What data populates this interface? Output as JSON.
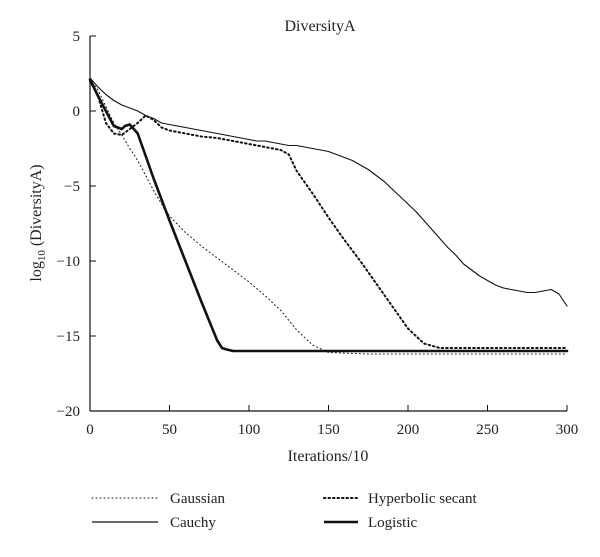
{
  "chart_data": {
    "type": "line",
    "title": "DiversityA",
    "xlabel": "Iterations/10",
    "ylabel_base": "log",
    "ylabel_sub": "10",
    "ylabel_rest": " (DiversityA)",
    "xlim": [
      0,
      300
    ],
    "ylim": [
      -20,
      5
    ],
    "xticks": [
      0,
      50,
      100,
      150,
      200,
      250,
      300
    ],
    "yticks": [
      5,
      0,
      -5,
      -10,
      -15,
      -20
    ],
    "grid": false,
    "legend_position": "bottom",
    "series": [
      {
        "name": "Gaussian",
        "style": "dotted-thin",
        "points": [
          [
            0,
            2.1
          ],
          [
            5,
            1.4
          ],
          [
            10,
            0.3
          ],
          [
            15,
            -0.8
          ],
          [
            20,
            -1.6
          ],
          [
            25,
            -2.5
          ],
          [
            30,
            -3.3
          ],
          [
            35,
            -4.3
          ],
          [
            40,
            -5.3
          ],
          [
            45,
            -6.2
          ],
          [
            50,
            -7.0
          ],
          [
            60,
            -8.1
          ],
          [
            70,
            -9.0
          ],
          [
            80,
            -9.8
          ],
          [
            90,
            -10.6
          ],
          [
            100,
            -11.4
          ],
          [
            110,
            -12.3
          ],
          [
            120,
            -13.3
          ],
          [
            130,
            -14.6
          ],
          [
            140,
            -15.6
          ],
          [
            150,
            -16.1
          ],
          [
            175,
            -16.2
          ],
          [
            200,
            -16.2
          ],
          [
            250,
            -16.2
          ],
          [
            300,
            -16.2
          ]
        ]
      },
      {
        "name": "Cauchy",
        "style": "solid-thin",
        "points": [
          [
            0,
            2.2
          ],
          [
            5,
            1.6
          ],
          [
            10,
            1.1
          ],
          [
            15,
            0.7
          ],
          [
            20,
            0.4
          ],
          [
            25,
            0.2
          ],
          [
            30,
            0.0
          ],
          [
            35,
            -0.3
          ],
          [
            40,
            -0.5
          ],
          [
            45,
            -0.8
          ],
          [
            50,
            -0.9
          ],
          [
            55,
            -1.0
          ],
          [
            60,
            -1.1
          ],
          [
            65,
            -1.2
          ],
          [
            70,
            -1.3
          ],
          [
            75,
            -1.4
          ],
          [
            80,
            -1.5
          ],
          [
            85,
            -1.6
          ],
          [
            90,
            -1.7
          ],
          [
            95,
            -1.8
          ],
          [
            100,
            -1.9
          ],
          [
            105,
            -2.0
          ],
          [
            110,
            -2.0
          ],
          [
            115,
            -2.1
          ],
          [
            120,
            -2.2
          ],
          [
            125,
            -2.3
          ],
          [
            130,
            -2.3
          ],
          [
            135,
            -2.4
          ],
          [
            140,
            -2.5
          ],
          [
            145,
            -2.6
          ],
          [
            150,
            -2.7
          ],
          [
            155,
            -2.9
          ],
          [
            160,
            -3.1
          ],
          [
            165,
            -3.3
          ],
          [
            170,
            -3.6
          ],
          [
            175,
            -3.9
          ],
          [
            180,
            -4.3
          ],
          [
            185,
            -4.7
          ],
          [
            190,
            -5.2
          ],
          [
            195,
            -5.7
          ],
          [
            200,
            -6.2
          ],
          [
            205,
            -6.7
          ],
          [
            210,
            -7.3
          ],
          [
            215,
            -7.9
          ],
          [
            220,
            -8.5
          ],
          [
            225,
            -9.1
          ],
          [
            230,
            -9.6
          ],
          [
            235,
            -10.2
          ],
          [
            240,
            -10.6
          ],
          [
            245,
            -11.0
          ],
          [
            250,
            -11.3
          ],
          [
            255,
            -11.6
          ],
          [
            260,
            -11.8
          ],
          [
            265,
            -11.9
          ],
          [
            270,
            -12.0
          ],
          [
            275,
            -12.1
          ],
          [
            280,
            -12.1
          ],
          [
            285,
            -12.0
          ],
          [
            290,
            -11.9
          ],
          [
            295,
            -12.2
          ],
          [
            300,
            -13.0
          ]
        ]
      },
      {
        "name": "Hyperbolic secant",
        "style": "dotted-thick",
        "points": [
          [
            0,
            2.0
          ],
          [
            5,
            1.0
          ],
          [
            10,
            -0.8
          ],
          [
            15,
            -1.5
          ],
          [
            20,
            -1.6
          ],
          [
            25,
            -1.2
          ],
          [
            30,
            -0.8
          ],
          [
            35,
            -0.3
          ],
          [
            40,
            -0.6
          ],
          [
            45,
            -1.1
          ],
          [
            50,
            -1.3
          ],
          [
            60,
            -1.5
          ],
          [
            70,
            -1.7
          ],
          [
            80,
            -1.8
          ],
          [
            90,
            -2.0
          ],
          [
            100,
            -2.2
          ],
          [
            110,
            -2.4
          ],
          [
            120,
            -2.6
          ],
          [
            125,
            -2.9
          ],
          [
            130,
            -4.0
          ],
          [
            140,
            -5.5
          ],
          [
            150,
            -7.1
          ],
          [
            160,
            -8.6
          ],
          [
            170,
            -10.0
          ],
          [
            180,
            -11.5
          ],
          [
            190,
            -13.0
          ],
          [
            200,
            -14.5
          ],
          [
            210,
            -15.5
          ],
          [
            220,
            -15.8
          ],
          [
            250,
            -15.8
          ],
          [
            300,
            -15.8
          ]
        ]
      },
      {
        "name": "Logistic",
        "style": "solid-thick",
        "points": [
          [
            0,
            2.1
          ],
          [
            5,
            1.0
          ],
          [
            10,
            0.0
          ],
          [
            15,
            -1.0
          ],
          [
            20,
            -1.2
          ],
          [
            22,
            -1.0
          ],
          [
            25,
            -0.9
          ],
          [
            30,
            -1.5
          ],
          [
            35,
            -3.0
          ],
          [
            40,
            -4.5
          ],
          [
            50,
            -7.3
          ],
          [
            60,
            -10.0
          ],
          [
            70,
            -12.7
          ],
          [
            80,
            -15.3
          ],
          [
            83,
            -15.8
          ],
          [
            86,
            -15.9
          ],
          [
            90,
            -16.0
          ],
          [
            120,
            -16.0
          ],
          [
            150,
            -16.0
          ],
          [
            200,
            -16.0
          ],
          [
            250,
            -16.0
          ],
          [
            300,
            -16.0
          ]
        ]
      }
    ]
  }
}
